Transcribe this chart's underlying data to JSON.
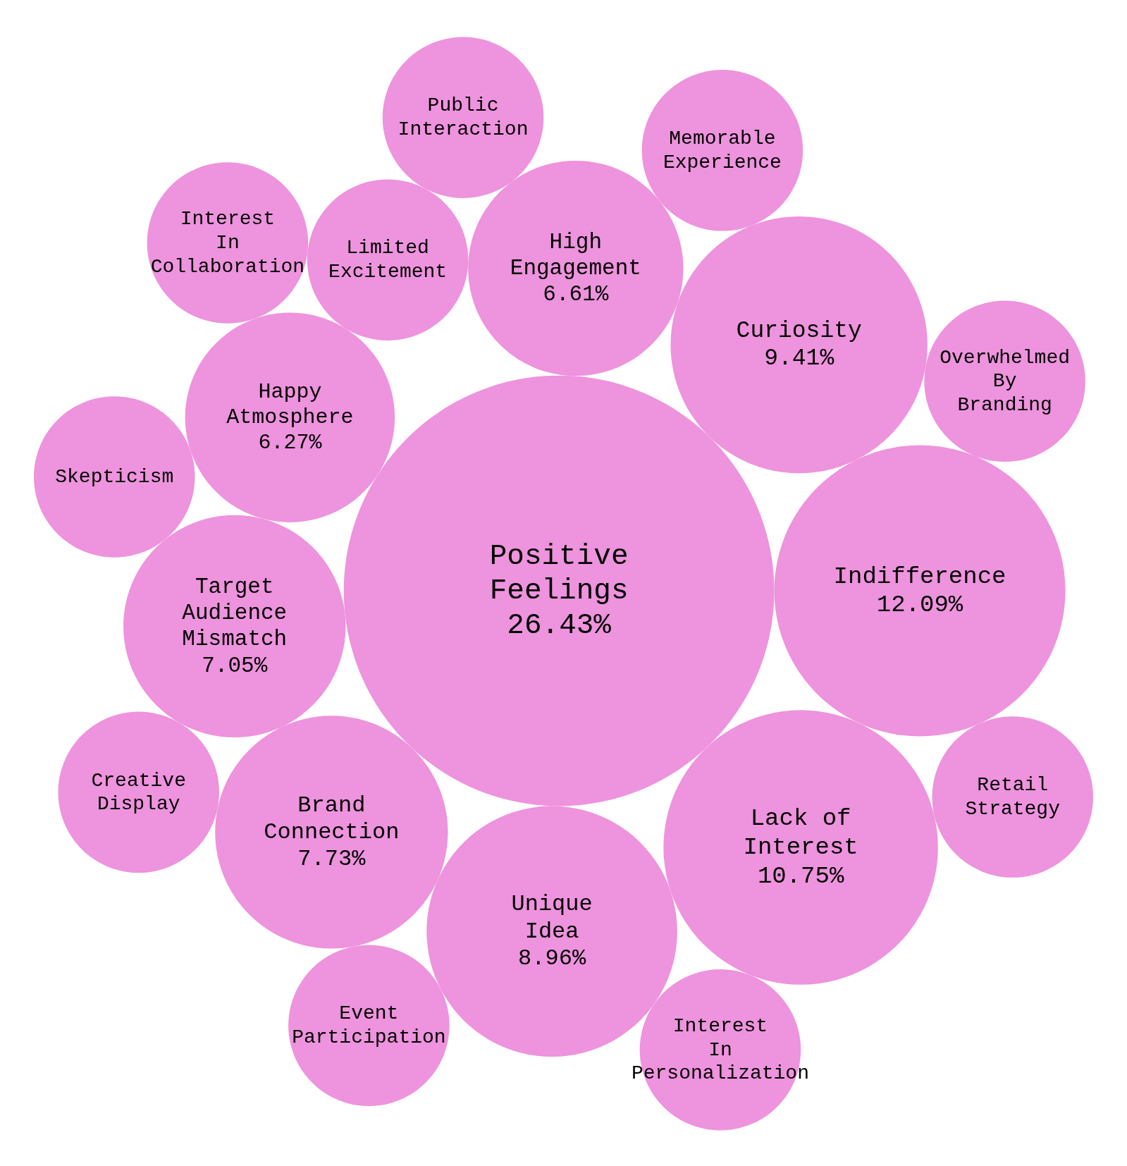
{
  "chart_data": {
    "type": "other",
    "color": "#ee93dd",
    "categories": [
      "Positive\nFeelings",
      "Indifference",
      "Lack of\nInterest",
      "Curiosity",
      "Unique\nIdea",
      "Brand\nConnection",
      "Target\nAudience\nMismatch",
      "High\nEngagement",
      "Happy\nAtmosphere",
      "Limited\nExcitement",
      "Skepticism",
      "Creative\nDisplay",
      "Memorable\nExperience",
      "Event\nParticipation",
      "Interest\nIn\nCollaboration",
      "Public\nInteraction",
      "Interest\nIn\nPersonalization",
      "Overwhelmed\nBy\nBranding",
      "Retail\nStrategy"
    ],
    "values": [
      26.43,
      12.09,
      10.75,
      9.41,
      8.96,
      7.73,
      7.05,
      6.61,
      6.27,
      null,
      null,
      null,
      null,
      null,
      null,
      null,
      null,
      null,
      null
    ],
    "value_labels": [
      "26.43%",
      "12.09%",
      "10.75%",
      "9.41%",
      "8.96%",
      "7.73%",
      "7.05%",
      "6.61%",
      "6.27%",
      null,
      null,
      null,
      null,
      null,
      null,
      null,
      null,
      null,
      null
    ]
  }
}
